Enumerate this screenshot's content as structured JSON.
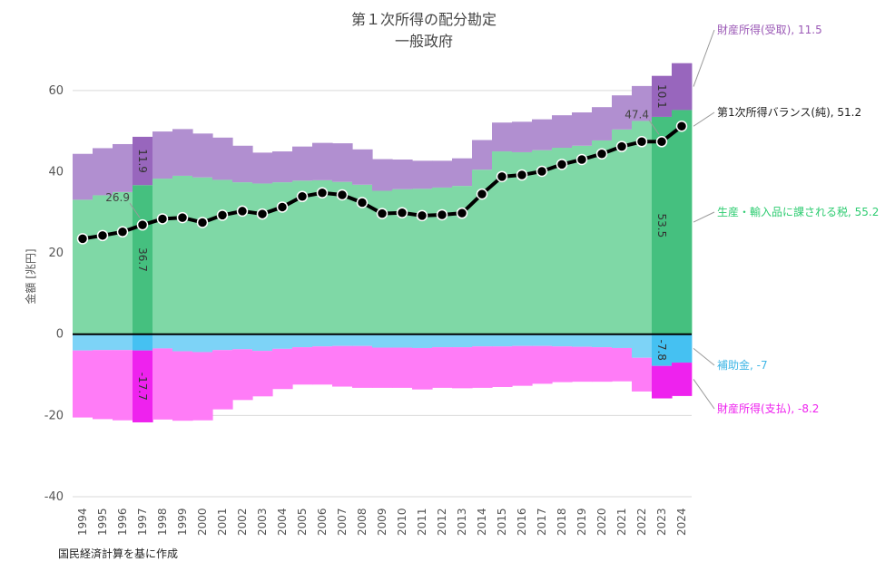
{
  "chart_data": {
    "type": "area",
    "title": "第１次所得の配分勘定",
    "subtitle": "一般政府",
    "ylabel": "金額 [兆円]",
    "ylim": [
      -40,
      70
    ],
    "yticks": [
      -40,
      -20,
      0,
      20,
      40,
      60
    ],
    "grid": true,
    "categories": [
      "1994",
      "1995",
      "1996",
      "1997",
      "1998",
      "1999",
      "2000",
      "2001",
      "2002",
      "2003",
      "2004",
      "2005",
      "2006",
      "2007",
      "2008",
      "2009",
      "2010",
      "2011",
      "2012",
      "2013",
      "2014",
      "2015",
      "2016",
      "2017",
      "2018",
      "2019",
      "2020",
      "2021",
      "2022",
      "2023",
      "2024"
    ],
    "highlight_years": [
      "1997",
      "2023"
    ],
    "series": [
      {
        "name": "生産・輸入品に課される税",
        "kind": "positive",
        "values": [
          33.1,
          34.2,
          35.0,
          36.7,
          38.3,
          39.0,
          38.6,
          38.0,
          37.4,
          37.1,
          37.4,
          37.8,
          37.9,
          37.5,
          36.8,
          35.3,
          35.7,
          35.8,
          36.1,
          36.5,
          40.5,
          45.0,
          44.8,
          45.3,
          45.9,
          46.4,
          47.7,
          50.4,
          52.5,
          53.5,
          55.2
        ]
      },
      {
        "name": "財産所得(受取)",
        "kind": "positive",
        "values": [
          11.3,
          11.6,
          11.8,
          11.9,
          11.6,
          11.5,
          10.8,
          10.4,
          9.0,
          7.6,
          7.6,
          8.4,
          9.2,
          9.5,
          8.7,
          7.8,
          7.3,
          6.9,
          6.6,
          6.8,
          7.3,
          7.1,
          7.5,
          7.6,
          8.0,
          8.2,
          8.2,
          8.4,
          8.6,
          10.1,
          11.5
        ]
      },
      {
        "name": "補助金",
        "kind": "negative",
        "values": [
          -4.0,
          -3.9,
          -3.9,
          -4.0,
          -3.5,
          -4.2,
          -4.4,
          -3.9,
          -3.7,
          -4.1,
          -3.6,
          -3.2,
          -3.0,
          -2.9,
          -2.9,
          -3.3,
          -3.3,
          -3.4,
          -3.2,
          -3.2,
          -3.0,
          -3.0,
          -2.9,
          -2.9,
          -3.0,
          -3.1,
          -3.2,
          -3.4,
          -5.8,
          -7.8,
          -7.0
        ]
      },
      {
        "name": "財産所得(支払)",
        "kind": "negative",
        "values": [
          -16.5,
          -17.0,
          -17.3,
          -17.7,
          -17.5,
          -17.1,
          -16.8,
          -14.6,
          -12.5,
          -11.2,
          -9.9,
          -9.2,
          -9.4,
          -10.0,
          -10.3,
          -9.9,
          -9.9,
          -10.2,
          -10.0,
          -10.1,
          -10.2,
          -10.0,
          -9.8,
          -9.3,
          -8.8,
          -8.6,
          -8.5,
          -8.2,
          -8.3,
          -8.0,
          -8.2
        ]
      },
      {
        "name": "第1次所得バランス(純)",
        "kind": "line",
        "values": [
          23.5,
          24.3,
          25.2,
          26.9,
          28.4,
          28.7,
          27.5,
          29.3,
          30.3,
          29.6,
          31.3,
          33.9,
          34.8,
          34.3,
          32.4,
          29.7,
          29.9,
          29.2,
          29.4,
          29.8,
          34.5,
          38.8,
          39.2,
          40.1,
          41.8,
          43.0,
          44.4,
          46.2,
          47.4,
          47.4,
          51.2
        ]
      }
    ],
    "bar_labels": [
      {
        "year": "1997",
        "text": "11.9",
        "series": "財産所得(受取)"
      },
      {
        "year": "1997",
        "text": "36.7",
        "series": "生産・輸入品に課される税"
      },
      {
        "year": "1997",
        "text": "-17.7",
        "series": "財産所得(支払)"
      },
      {
        "year": "2023",
        "text": "10.1",
        "series": "財産所得(受取)"
      },
      {
        "year": "2023",
        "text": "53.5",
        "series": "生産・輸入品に課される税"
      },
      {
        "year": "2023",
        "text": "-7.8",
        "series": "補助金"
      }
    ],
    "point_labels": [
      {
        "year": "1997",
        "text": "26.9"
      },
      {
        "year": "2023",
        "text": "47.4"
      }
    ],
    "right_labels": [
      {
        "text": "財産所得(受取), 11.5",
        "color": "#9b59b6"
      },
      {
        "text": "第1次所得バランス(純), 51.2",
        "color": "#222222"
      },
      {
        "text": "生産・輸入品に課される税, 55.2",
        "color": "#2ecc71"
      },
      {
        "text": "補助金, -7",
        "color": "#3fb6e6"
      },
      {
        "text": "財産所得(支払), -8.2",
        "color": "#ee22ee"
      }
    ],
    "colors": {
      "tax": "#7fd8a6",
      "tax_hl": "#45c07f",
      "prop_recv": "#b18fd0",
      "prop_recv_hl": "#9866bd",
      "subsidy": "#7dd3f7",
      "subsidy_hl": "#45c1f2",
      "prop_paid": "#ff7cf7",
      "prop_paid_hl": "#ee22ee",
      "line": "#000000"
    }
  },
  "footer": {
    "source": "国民経済計算を基に作成"
  }
}
